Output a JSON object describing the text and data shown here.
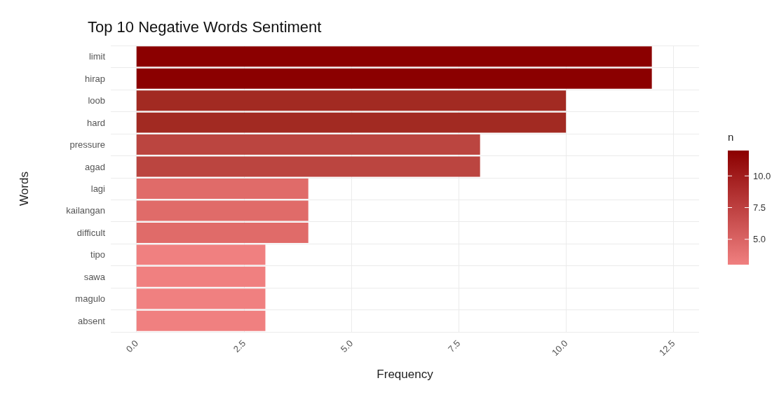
{
  "chart_data": {
    "type": "bar",
    "orientation": "horizontal",
    "title": "Top 10 Negative Words Sentiment",
    "xlabel": "Frequency",
    "ylabel": "Words",
    "legend_title": "n",
    "categories": [
      "limit",
      "hirap",
      "loob",
      "hard",
      "pressure",
      "agad",
      "lagi",
      "kailangan",
      "difficult",
      "tipo",
      "sawa",
      "magulo",
      "absent"
    ],
    "values": [
      12,
      12,
      10,
      10,
      8,
      8,
      4,
      4,
      4,
      3,
      3,
      3,
      3
    ],
    "colors": [
      "#8b0000",
      "#8b0000",
      "#a22a22",
      "#a22a22",
      "#bb4540",
      "#bb4540",
      "#e06b69",
      "#e06b69",
      "#e06b69",
      "#f08080",
      "#f08080",
      "#f08080",
      "#f08080"
    ],
    "xlim": [
      -0.6,
      13.1
    ],
    "xticks": [
      {
        "value": 0,
        "label": "0.0"
      },
      2.5,
      {
        "value": 5,
        "label": "5.0"
      },
      7.5,
      {
        "value": 10,
        "label": "10.0"
      },
      12.5
    ],
    "clim": [
      3,
      12
    ],
    "cticks": [
      {
        "value": 5,
        "label": "5.0"
      },
      7.5,
      {
        "value": 10,
        "label": "10.0"
      }
    ],
    "grid": true
  }
}
